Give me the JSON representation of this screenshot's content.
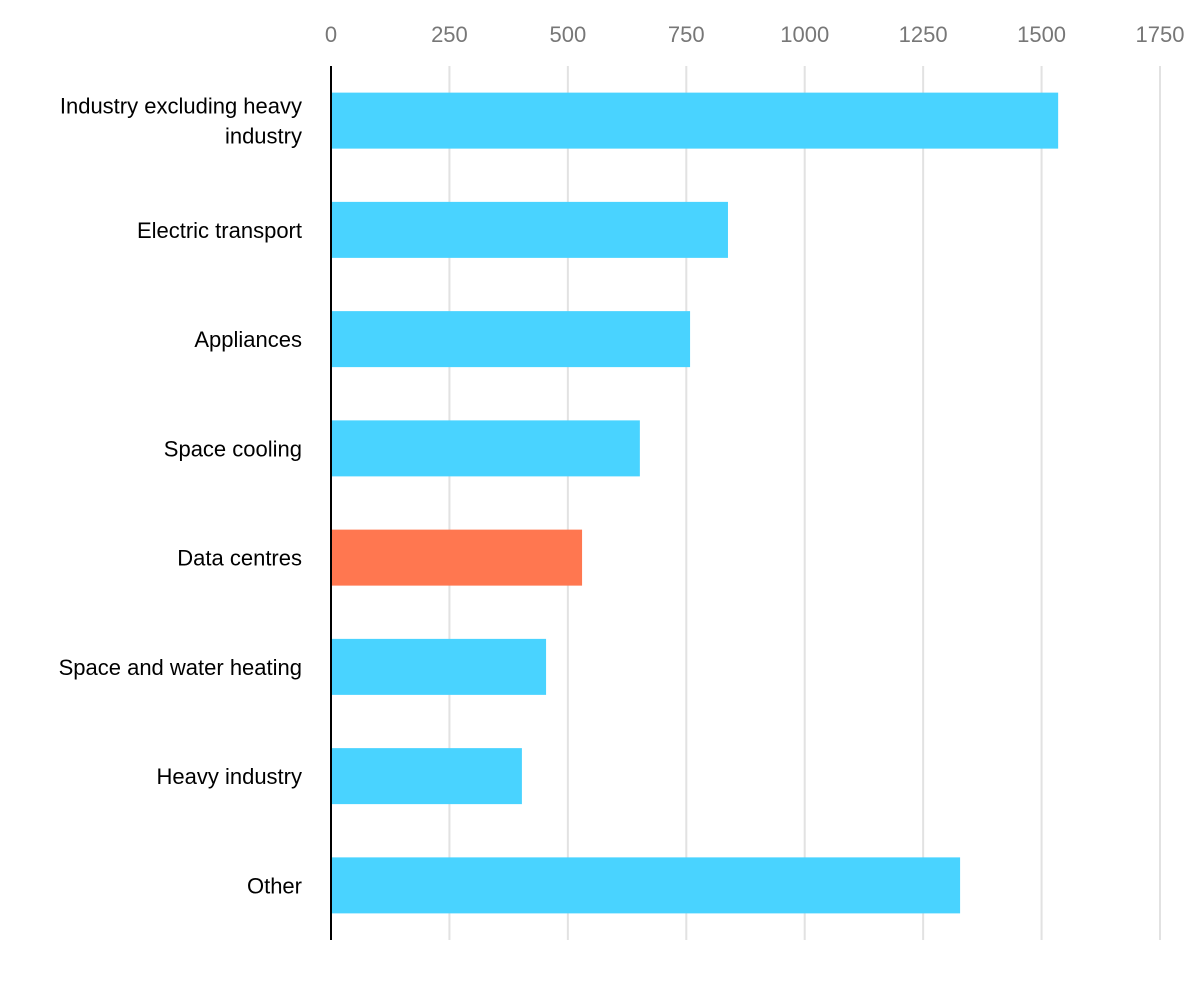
{
  "chart_data": {
    "type": "bar",
    "orientation": "horizontal",
    "title": "",
    "xlabel": "",
    "ylabel": "",
    "xlim": [
      0,
      1750
    ],
    "ticks": [
      "0",
      "250",
      "500",
      "750",
      "1000",
      "1250",
      "1500",
      "1750"
    ],
    "tick_values": [
      0,
      250,
      500,
      750,
      1000,
      1250,
      1500,
      1750
    ],
    "grid": true,
    "axis_position": "top",
    "categories": [
      [
        "Industry excluding heavy",
        "industry"
      ],
      [
        "Electric transport"
      ],
      [
        "Appliances"
      ],
      [
        "Space cooling"
      ],
      [
        "Data centres"
      ],
      [
        "Space and water heating"
      ],
      [
        "Heavy industry"
      ],
      [
        "Other"
      ]
    ],
    "values": [
      1535,
      838,
      758,
      652,
      530,
      454,
      403,
      1328
    ],
    "colors": [
      "#49d3ff",
      "#49d3ff",
      "#49d3ff",
      "#49d3ff",
      "#ff7750",
      "#49d3ff",
      "#49d3ff",
      "#49d3ff"
    ],
    "highlighted_category": "Data centres"
  }
}
